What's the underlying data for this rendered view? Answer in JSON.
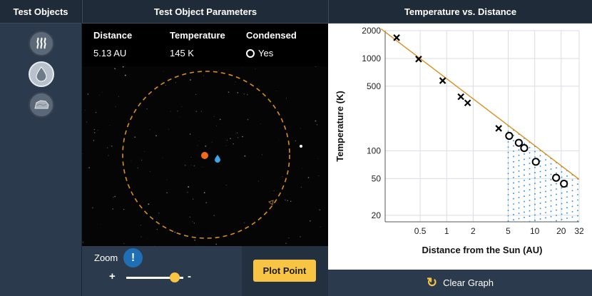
{
  "left_panel": {
    "title": "Test Objects",
    "objects": [
      {
        "name": "gas-icon"
      },
      {
        "name": "droplet-icon",
        "selected": true
      },
      {
        "name": "rock-icon"
      }
    ]
  },
  "middle_panel": {
    "title": "Test Object Parameters",
    "distance": {
      "label": "Distance",
      "value": "5.13 AU"
    },
    "temperature": {
      "label": "Temperature",
      "value": "145 K"
    },
    "condensed": {
      "label": "Condensed",
      "value": "Yes"
    },
    "zoom": {
      "label": "Zoom",
      "info": "!",
      "plus": "+",
      "minus": "-",
      "level": 0.85
    },
    "plot_button": "Plot Point"
  },
  "right_panel": {
    "title": "Temperature vs. Distance",
    "clear_button": "Clear Graph"
  },
  "chart_data": {
    "type": "scatter",
    "title": "",
    "xlabel": "Distance from the Sun (AU)",
    "ylabel": "Temperature (K)",
    "x_scale": "log",
    "y_scale": "log",
    "xlim": [
      0.2,
      32
    ],
    "ylim": [
      17,
      2000
    ],
    "x_ticks": [
      "0.5",
      "1",
      "2",
      "5",
      "10",
      "20",
      "32"
    ],
    "x_tick_values": [
      0.5,
      1,
      2,
      5,
      10,
      20,
      32
    ],
    "y_ticks": [
      "2000",
      "1000",
      "500",
      "100",
      "50",
      "20"
    ],
    "y_tick_values": [
      2000,
      1000,
      500,
      100,
      50,
      20
    ],
    "trend_line": [
      [
        0.18,
        2090
      ],
      [
        32,
        49
      ]
    ],
    "series": [
      {
        "marker": "x",
        "color": "#000000",
        "points": [
          [
            0.27,
            1680
          ],
          [
            0.48,
            985
          ],
          [
            0.9,
            575
          ],
          [
            1.45,
            385
          ],
          [
            1.73,
            330
          ],
          [
            3.9,
            175
          ]
        ]
      },
      {
        "marker": "o",
        "color": "#000000",
        "points": [
          [
            5.13,
            145
          ],
          [
            6.6,
            122
          ],
          [
            7.6,
            107
          ],
          [
            10.3,
            76
          ],
          [
            17.5,
            51
          ],
          [
            21.5,
            44
          ]
        ]
      }
    ],
    "condensation_region": {
      "x_start": 5,
      "x_end": 32,
      "color": "#1e88e5"
    }
  }
}
